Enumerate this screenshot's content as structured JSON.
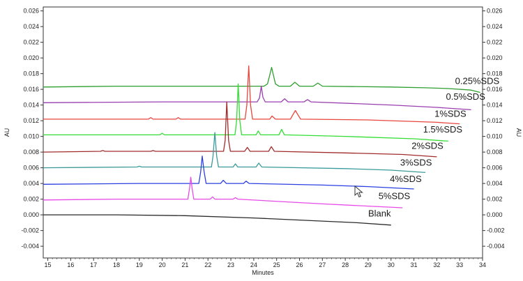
{
  "chart_data": {
    "type": "line",
    "xlabel": "Minutes",
    "ylabel": "AU",
    "ylabel_right": "AU",
    "xlim": [
      14.8,
      34.0
    ],
    "ylim": [
      -0.0055,
      0.0265
    ],
    "x_ticks": [
      "15",
      "16",
      "17",
      "18",
      "19",
      "20",
      "21",
      "22",
      "23",
      "24",
      "25",
      "26",
      "27",
      "28",
      "29",
      "30",
      "31",
      "32",
      "33",
      "34"
    ],
    "y_ticks": [
      "0.026",
      "0.024",
      "0.022",
      "0.020",
      "0.018",
      "0.016",
      "0.014",
      "0.012",
      "0.010",
      "0.008",
      "0.006",
      "0.004",
      "0.002",
      "0.000",
      "-0.002",
      "-0.004"
    ],
    "grid": false,
    "series": [
      {
        "name": "0.25%SDS",
        "color": "#2e9e2e",
        "points": [
          [
            14.8,
            0.0163
          ],
          [
            18,
            0.0164
          ],
          [
            21.5,
            0.0164
          ],
          [
            23.5,
            0.0164
          ],
          [
            24.45,
            0.0164
          ],
          [
            24.6,
            0.0167
          ],
          [
            24.7,
            0.0178
          ],
          [
            24.78,
            0.0188
          ],
          [
            24.86,
            0.0178
          ],
          [
            24.95,
            0.0167
          ],
          [
            25.1,
            0.0164
          ],
          [
            25.6,
            0.0164
          ],
          [
            25.8,
            0.0169
          ],
          [
            26.0,
            0.0164
          ],
          [
            26.6,
            0.0164
          ],
          [
            26.8,
            0.0168
          ],
          [
            27.0,
            0.0164
          ],
          [
            30,
            0.0163
          ],
          [
            31.5,
            0.0162
          ],
          [
            32.5,
            0.0161
          ],
          [
            33.5,
            0.0159
          ],
          [
            33.9,
            0.0156
          ]
        ],
        "label_x": 32.8,
        "label_y": 0.0167
      },
      {
        "name": "0.5%SDS",
        "color": "#9a3fb0",
        "points": [
          [
            14.8,
            0.0143
          ],
          [
            20,
            0.0144
          ],
          [
            24.15,
            0.0144
          ],
          [
            24.25,
            0.0149
          ],
          [
            24.33,
            0.0164
          ],
          [
            24.4,
            0.015
          ],
          [
            24.5,
            0.0144
          ],
          [
            25.2,
            0.0144
          ],
          [
            25.35,
            0.0148
          ],
          [
            25.5,
            0.0144
          ],
          [
            26.2,
            0.0144
          ],
          [
            26.35,
            0.0147
          ],
          [
            26.5,
            0.0144
          ],
          [
            30,
            0.014
          ],
          [
            32,
            0.0137
          ],
          [
            33.5,
            0.0134
          ]
        ],
        "label_x": 32.4,
        "label_y": 0.0147
      },
      {
        "name": "1%SDS",
        "color": "#e8453c",
        "points": [
          [
            14.8,
            0.0122
          ],
          [
            19.4,
            0.0122
          ],
          [
            19.5,
            0.0124
          ],
          [
            19.6,
            0.0122
          ],
          [
            20.6,
            0.0122
          ],
          [
            20.7,
            0.0124
          ],
          [
            20.8,
            0.0122
          ],
          [
            23.62,
            0.0122
          ],
          [
            23.7,
            0.014
          ],
          [
            23.78,
            0.019
          ],
          [
            23.86,
            0.014
          ],
          [
            23.95,
            0.0122
          ],
          [
            24.7,
            0.0122
          ],
          [
            24.8,
            0.0126
          ],
          [
            24.95,
            0.0122
          ],
          [
            25.6,
            0.0122
          ],
          [
            25.72,
            0.0128
          ],
          [
            25.82,
            0.0133
          ],
          [
            25.92,
            0.0128
          ],
          [
            26.05,
            0.0122
          ],
          [
            29,
            0.0121
          ],
          [
            32,
            0.0118
          ],
          [
            33.0,
            0.0116
          ]
        ],
        "label_x": 31.9,
        "label_y": 0.0125
      },
      {
        "name": "1.5%SDS",
        "color": "#33dd33",
        "points": [
          [
            14.8,
            0.0102
          ],
          [
            19.9,
            0.0102
          ],
          [
            20.0,
            0.0104
          ],
          [
            20.1,
            0.0102
          ],
          [
            23.18,
            0.0102
          ],
          [
            23.25,
            0.012
          ],
          [
            23.32,
            0.0167
          ],
          [
            23.39,
            0.012
          ],
          [
            23.47,
            0.0102
          ],
          [
            24.1,
            0.0102
          ],
          [
            24.2,
            0.0107
          ],
          [
            24.3,
            0.0102
          ],
          [
            25.1,
            0.0102
          ],
          [
            25.22,
            0.0109
          ],
          [
            25.34,
            0.0102
          ],
          [
            28,
            0.01
          ],
          [
            31,
            0.0097
          ],
          [
            32.5,
            0.0094
          ]
        ],
        "label_x": 31.4,
        "label_y": 0.0105
      },
      {
        "name": "2%SDS",
        "color": "#a12b2b",
        "points": [
          [
            14.8,
            0.008
          ],
          [
            17.3,
            0.0081
          ],
          [
            17.4,
            0.0082
          ],
          [
            17.5,
            0.0081
          ],
          [
            19.5,
            0.0081
          ],
          [
            19.6,
            0.0082
          ],
          [
            19.7,
            0.0081
          ],
          [
            22.68,
            0.0081
          ],
          [
            22.75,
            0.0095
          ],
          [
            22.82,
            0.0144
          ],
          [
            22.9,
            0.0095
          ],
          [
            22.98,
            0.0081
          ],
          [
            23.6,
            0.0081
          ],
          [
            23.72,
            0.0086
          ],
          [
            23.84,
            0.0081
          ],
          [
            24.65,
            0.0081
          ],
          [
            24.77,
            0.0087
          ],
          [
            24.9,
            0.0081
          ],
          [
            28,
            0.0079
          ],
          [
            30.5,
            0.0077
          ],
          [
            32.0,
            0.0074
          ]
        ],
        "label_x": 30.9,
        "label_y": 0.0084
      },
      {
        "name": "3%SDS",
        "color": "#3a9a9a",
        "points": [
          [
            14.8,
            0.006
          ],
          [
            18.9,
            0.0061
          ],
          [
            19.0,
            0.0062
          ],
          [
            19.1,
            0.0061
          ],
          [
            22.15,
            0.0061
          ],
          [
            22.22,
            0.0075
          ],
          [
            22.3,
            0.0105
          ],
          [
            22.38,
            0.0075
          ],
          [
            22.46,
            0.0061
          ],
          [
            23.1,
            0.0061
          ],
          [
            23.2,
            0.0065
          ],
          [
            23.3,
            0.0061
          ],
          [
            24.1,
            0.0061
          ],
          [
            24.22,
            0.0066
          ],
          [
            24.35,
            0.0061
          ],
          [
            28,
            0.0059
          ],
          [
            30,
            0.0057
          ],
          [
            31.5,
            0.0054
          ]
        ],
        "label_x": 30.4,
        "label_y": 0.0063
      },
      {
        "name": "4%SDS",
        "color": "#2b3fe0",
        "points": [
          [
            14.8,
            0.0039
          ],
          [
            19,
            0.004
          ],
          [
            21.6,
            0.004
          ],
          [
            21.68,
            0.0055
          ],
          [
            21.75,
            0.0075
          ],
          [
            21.83,
            0.0055
          ],
          [
            21.92,
            0.004
          ],
          [
            22.55,
            0.004
          ],
          [
            22.67,
            0.0044
          ],
          [
            22.8,
            0.004
          ],
          [
            23.55,
            0.004
          ],
          [
            23.67,
            0.0043
          ],
          [
            23.8,
            0.004
          ],
          [
            27,
            0.0038
          ],
          [
            29,
            0.0036
          ],
          [
            31.0,
            0.0033
          ]
        ],
        "label_x": 29.95,
        "label_y": 0.0042
      },
      {
        "name": "5%SDS",
        "color": "#e84ae8",
        "points": [
          [
            14.8,
            0.0019
          ],
          [
            18,
            0.002
          ],
          [
            21.12,
            0.002
          ],
          [
            21.2,
            0.0035
          ],
          [
            21.25,
            0.0048
          ],
          [
            21.3,
            0.0035
          ],
          [
            21.38,
            0.002
          ],
          [
            22.1,
            0.002
          ],
          [
            22.2,
            0.0023
          ],
          [
            22.3,
            0.002
          ],
          [
            23.1,
            0.002
          ],
          [
            23.2,
            0.0022
          ],
          [
            23.3,
            0.002
          ],
          [
            27,
            0.0014
          ],
          [
            30.5,
            0.0009
          ]
        ],
        "label_x": 29.45,
        "label_y": 0.002
      },
      {
        "name": "Blank",
        "color": "#2a2a2a",
        "points": [
          [
            14.8,
            0.0
          ],
          [
            18,
            0.0
          ],
          [
            21,
            -0.0001
          ],
          [
            24,
            -0.0004
          ],
          [
            27,
            -0.0008
          ],
          [
            28.5,
            -0.001
          ],
          [
            30.0,
            -0.0013
          ]
        ],
        "label_x": 29.0,
        "label_y": -0.0002
      }
    ]
  }
}
